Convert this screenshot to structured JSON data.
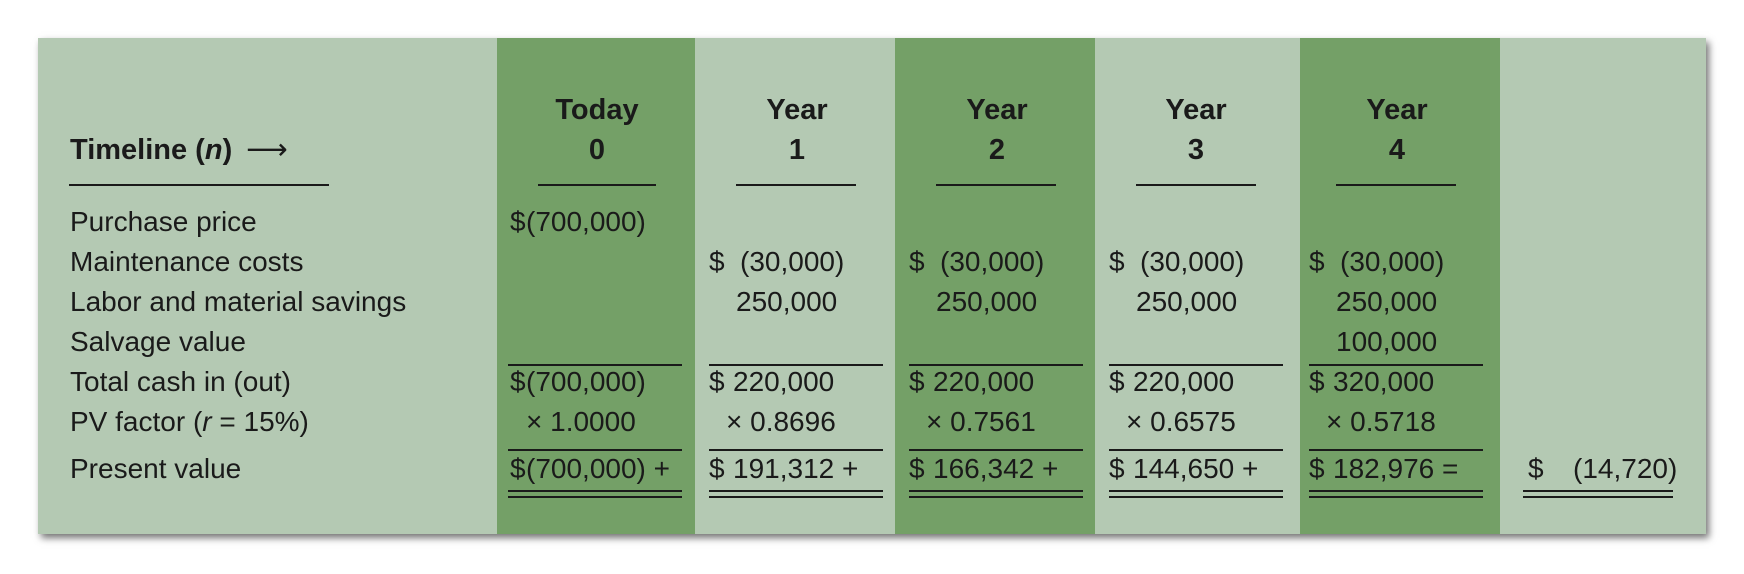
{
  "header": {
    "timeline_bold": "Timeline (",
    "timeline_n": "n",
    "timeline_close": ")",
    "arrow": "⟶",
    "columns": [
      {
        "line1": "Today",
        "line2": "0"
      },
      {
        "line1": "Year",
        "line2": "1"
      },
      {
        "line1": "Year",
        "line2": "2"
      },
      {
        "line1": "Year",
        "line2": "3"
      },
      {
        "line1": "Year",
        "line2": "4"
      }
    ]
  },
  "rows": {
    "purchase_price": "Purchase price",
    "maintenance_costs": "Maintenance costs",
    "labor_savings": "Labor and material savings",
    "salvage_value": "Salvage value",
    "total_cash": "Total cash in (out)",
    "pv_factor_prefix": "PV factor (",
    "pv_factor_r": "r",
    "pv_factor_suffix": " = 15%)",
    "present_value": "Present value"
  },
  "cells": {
    "purchase": {
      "cur": "$",
      "amt": "(700,000)"
    },
    "maintenance": [
      {
        "cur": "$",
        "amt": "(30,000)"
      },
      {
        "cur": "$",
        "amt": "(30,000)"
      },
      {
        "cur": "$",
        "amt": "(30,000)"
      },
      {
        "cur": "$",
        "amt": "(30,000)"
      }
    ],
    "labor": [
      "250,000",
      "250,000",
      "250,000",
      "250,000"
    ],
    "salvage": "100,000",
    "total": [
      {
        "cur": "$",
        "amt": "(700,000)"
      },
      {
        "cur": "$",
        "amt": "220,000"
      },
      {
        "cur": "$",
        "amt": "220,000"
      },
      {
        "cur": "$",
        "amt": "220,000"
      },
      {
        "cur": "$",
        "amt": "320,000"
      }
    ],
    "pv_factor": [
      "× 1.0000",
      "× 0.8696",
      "× 0.7561",
      "× 0.6575",
      "× 0.5718"
    ],
    "present_value": [
      {
        "cur": "$",
        "amt": "(700,000) +"
      },
      {
        "cur": "$",
        "amt": "191,312 +"
      },
      {
        "cur": "$",
        "amt": "166,342 +"
      },
      {
        "cur": "$",
        "amt": "144,650 +"
      },
      {
        "cur": "$",
        "amt": "182,976 ="
      }
    ],
    "npv": {
      "cur": "$",
      "amt": "(14,720)"
    }
  },
  "colors": {
    "panel": "#b4c9b3",
    "dark_column": "#74a067",
    "text": "#1a1a1a"
  }
}
